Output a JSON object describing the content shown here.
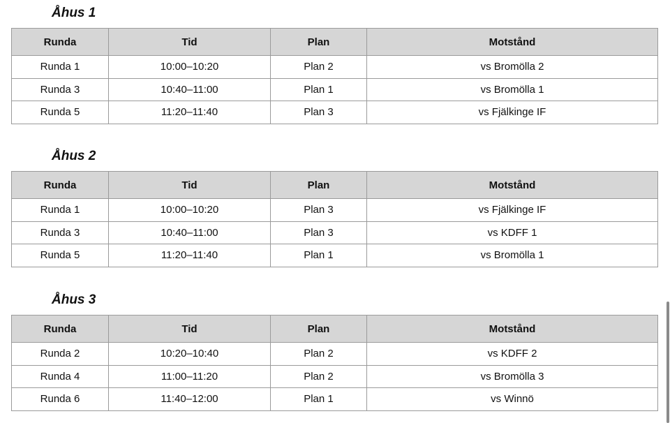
{
  "columns": [
    "Runda",
    "Tid",
    "Plan",
    "Motstånd"
  ],
  "sections": [
    {
      "title": "Åhus 1",
      "rows": [
        [
          "Runda 1",
          "10:00–10:20",
          "Plan 2",
          "vs Bromölla 2"
        ],
        [
          "Runda 3",
          "10:40–11:00",
          "Plan 1",
          "vs Bromölla 1"
        ],
        [
          "Runda 5",
          "11:20–11:40",
          "Plan 3",
          "vs Fjälkinge IF"
        ]
      ]
    },
    {
      "title": "Åhus 2",
      "rows": [
        [
          "Runda 1",
          "10:00–10:20",
          "Plan 3",
          "vs Fjälkinge IF"
        ],
        [
          "Runda 3",
          "10:40–11:00",
          "Plan 3",
          "vs KDFF 1"
        ],
        [
          "Runda 5",
          "11:20–11:40",
          "Plan 1",
          "vs Bromölla 1"
        ]
      ]
    },
    {
      "title": "Åhus 3",
      "rows": [
        [
          "Runda 2",
          "10:20–10:40",
          "Plan 2",
          "vs KDFF 2"
        ],
        [
          "Runda 4",
          "11:00–11:20",
          "Plan 2",
          "vs Bromölla 3"
        ],
        [
          "Runda 6",
          "11:40–12:00",
          "Plan 1",
          "vs Winnö"
        ]
      ]
    }
  ]
}
